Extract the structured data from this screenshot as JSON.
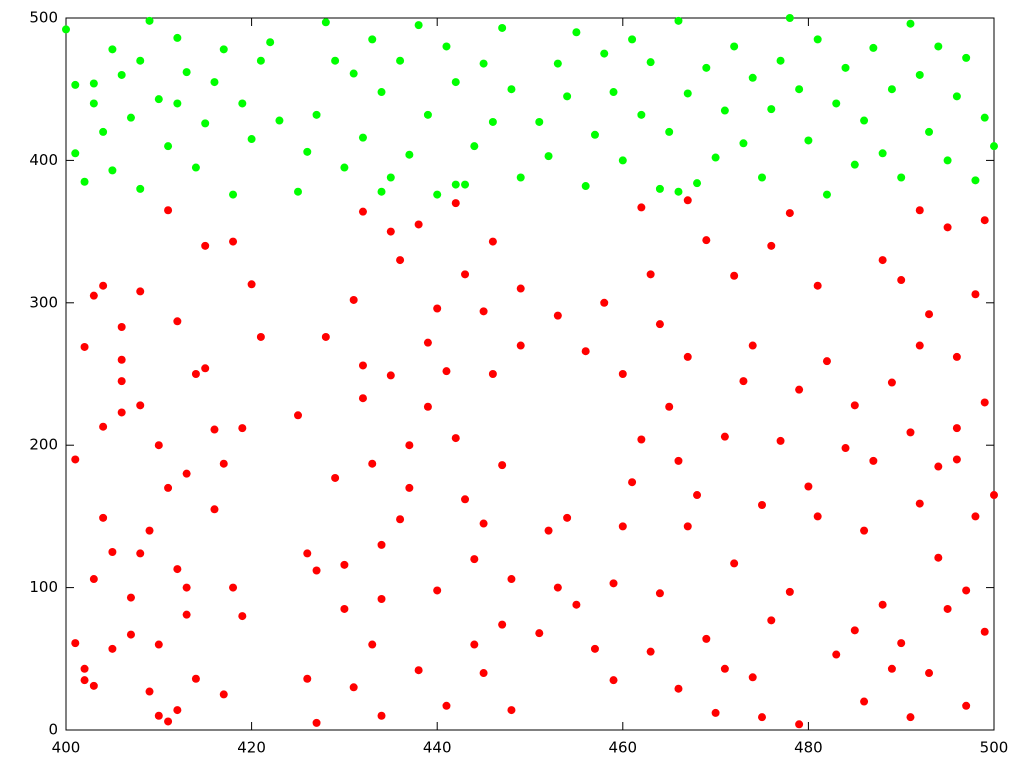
{
  "chart_data": {
    "type": "scatter",
    "xlim": [
      400,
      500
    ],
    "xticks": [
      400,
      420,
      440,
      460,
      480,
      500
    ],
    "ylim": [
      0,
      500
    ],
    "yticks": [
      0,
      100,
      200,
      300,
      400,
      500
    ],
    "grid": false,
    "series": [
      {
        "color": "#ff0000",
        "x": [
          401,
          401,
          402,
          402,
          403,
          402,
          403,
          404,
          404,
          405,
          406,
          406,
          406,
          407,
          407,
          408,
          408,
          409,
          410,
          410,
          411,
          411,
          412,
          412,
          413,
          413,
          414,
          415,
          415,
          416,
          417,
          417,
          418,
          418,
          419,
          420,
          419,
          421,
          410,
          411,
          413,
          414,
          408,
          405,
          403,
          409,
          412,
          416,
          406,
          404,
          425,
          426,
          427,
          426,
          427,
          428,
          429,
          430,
          431,
          432,
          432,
          433,
          434,
          434,
          435,
          435,
          436,
          437,
          438,
          438,
          439,
          440,
          440,
          441,
          441,
          442,
          443,
          443,
          444,
          445,
          445,
          446,
          446,
          447,
          447,
          448,
          449,
          449,
          431,
          433,
          436,
          439,
          442,
          444,
          437,
          430,
          434,
          445,
          448,
          432,
          451,
          452,
          453,
          453,
          454,
          455,
          456,
          457,
          458,
          459,
          460,
          460,
          461,
          462,
          462,
          463,
          464,
          464,
          465,
          466,
          466,
          467,
          467,
          468,
          469,
          469,
          470,
          471,
          472,
          472,
          473,
          474,
          474,
          475,
          476,
          476,
          477,
          478,
          478,
          479,
          479,
          480,
          481,
          481,
          482,
          483,
          484,
          485,
          485,
          486,
          459,
          463,
          467,
          471,
          475,
          487,
          488,
          488,
          489,
          490,
          490,
          491,
          491,
          492,
          492,
          493,
          493,
          494,
          494,
          495,
          495,
          496,
          496,
          497,
          497,
          498,
          498,
          499,
          499,
          500,
          489,
          492,
          496,
          499,
          486
        ],
        "values": [
          190,
          61,
          35,
          43,
          31,
          269,
          305,
          213,
          149,
          125,
          260,
          245,
          283,
          93,
          67,
          124,
          308,
          140,
          60,
          200,
          365,
          170,
          287,
          113,
          180,
          81,
          36,
          254,
          340,
          211,
          187,
          25,
          343,
          100,
          80,
          313,
          212,
          276,
          10,
          6,
          100,
          250,
          228,
          57,
          106,
          27,
          14,
          155,
          223,
          312,
          221,
          124,
          112,
          36,
          5,
          276,
          177,
          116,
          302,
          256,
          233,
          187,
          130,
          92,
          350,
          249,
          148,
          170,
          355,
          42,
          227,
          296,
          98,
          252,
          17,
          370,
          320,
          162,
          60,
          294,
          145,
          250,
          343,
          74,
          186,
          106,
          270,
          310,
          30,
          60,
          330,
          272,
          205,
          120,
          200,
          85,
          10,
          40,
          14,
          364,
          68,
          140,
          100,
          291,
          149,
          88,
          266,
          57,
          300,
          35,
          250,
          143,
          174,
          367,
          204,
          55,
          285,
          96,
          227,
          189,
          29,
          372,
          262,
          165,
          64,
          344,
          12,
          206,
          319,
          117,
          245,
          37,
          270,
          158,
          340,
          77,
          203,
          97,
          363,
          239,
          4,
          171,
          312,
          150,
          259,
          53,
          198,
          70,
          228,
          20,
          103,
          320,
          143,
          43,
          9,
          189,
          330,
          88,
          244,
          316,
          61,
          209,
          9,
          159,
          365,
          292,
          40,
          185,
          121,
          353,
          85,
          262,
          212,
          98,
          17,
          306,
          150,
          358,
          69,
          165,
          43,
          270,
          190,
          230,
          140
        ]
      },
      {
        "color": "#00ff00",
        "x": [
          400,
          401,
          401,
          402,
          403,
          404,
          405,
          405,
          406,
          407,
          408,
          408,
          409,
          410,
          411,
          412,
          413,
          414,
          415,
          416,
          417,
          418,
          419,
          420,
          421,
          422,
          423,
          425,
          426,
          427,
          428,
          429,
          430,
          431,
          432,
          433,
          434,
          435,
          436,
          437,
          438,
          439,
          440,
          441,
          442,
          443,
          444,
          445,
          446,
          447,
          448,
          449,
          451,
          452,
          453,
          454,
          455,
          456,
          457,
          458,
          459,
          460,
          461,
          462,
          463,
          464,
          465,
          466,
          467,
          468,
          469,
          470,
          471,
          472,
          473,
          474,
          475,
          476,
          477,
          478,
          479,
          480,
          481,
          482,
          483,
          484,
          485,
          486,
          487,
          488,
          489,
          490,
          491,
          492,
          493,
          494,
          495,
          496,
          497,
          498,
          499,
          500,
          466,
          434,
          442,
          412,
          403
        ],
        "values": [
          492,
          453,
          405,
          385,
          440,
          420,
          478,
          393,
          460,
          430,
          470,
          380,
          498,
          443,
          410,
          486,
          462,
          395,
          426,
          455,
          478,
          376,
          440,
          415,
          470,
          483,
          428,
          378,
          406,
          432,
          497,
          470,
          395,
          461,
          416,
          485,
          448,
          388,
          470,
          404,
          495,
          432,
          376,
          480,
          455,
          383,
          410,
          468,
          427,
          493,
          450,
          388,
          427,
          403,
          468,
          445,
          490,
          382,
          418,
          475,
          448,
          400,
          485,
          432,
          469,
          380,
          420,
          498,
          447,
          384,
          465,
          402,
          435,
          480,
          412,
          458,
          388,
          436,
          470,
          500,
          450,
          414,
          485,
          376,
          440,
          465,
          397,
          428,
          479,
          405,
          450,
          388,
          496,
          460,
          420,
          480,
          400,
          445,
          472,
          386,
          430,
          410,
          378,
          378,
          383,
          440,
          454
        ]
      }
    ]
  }
}
